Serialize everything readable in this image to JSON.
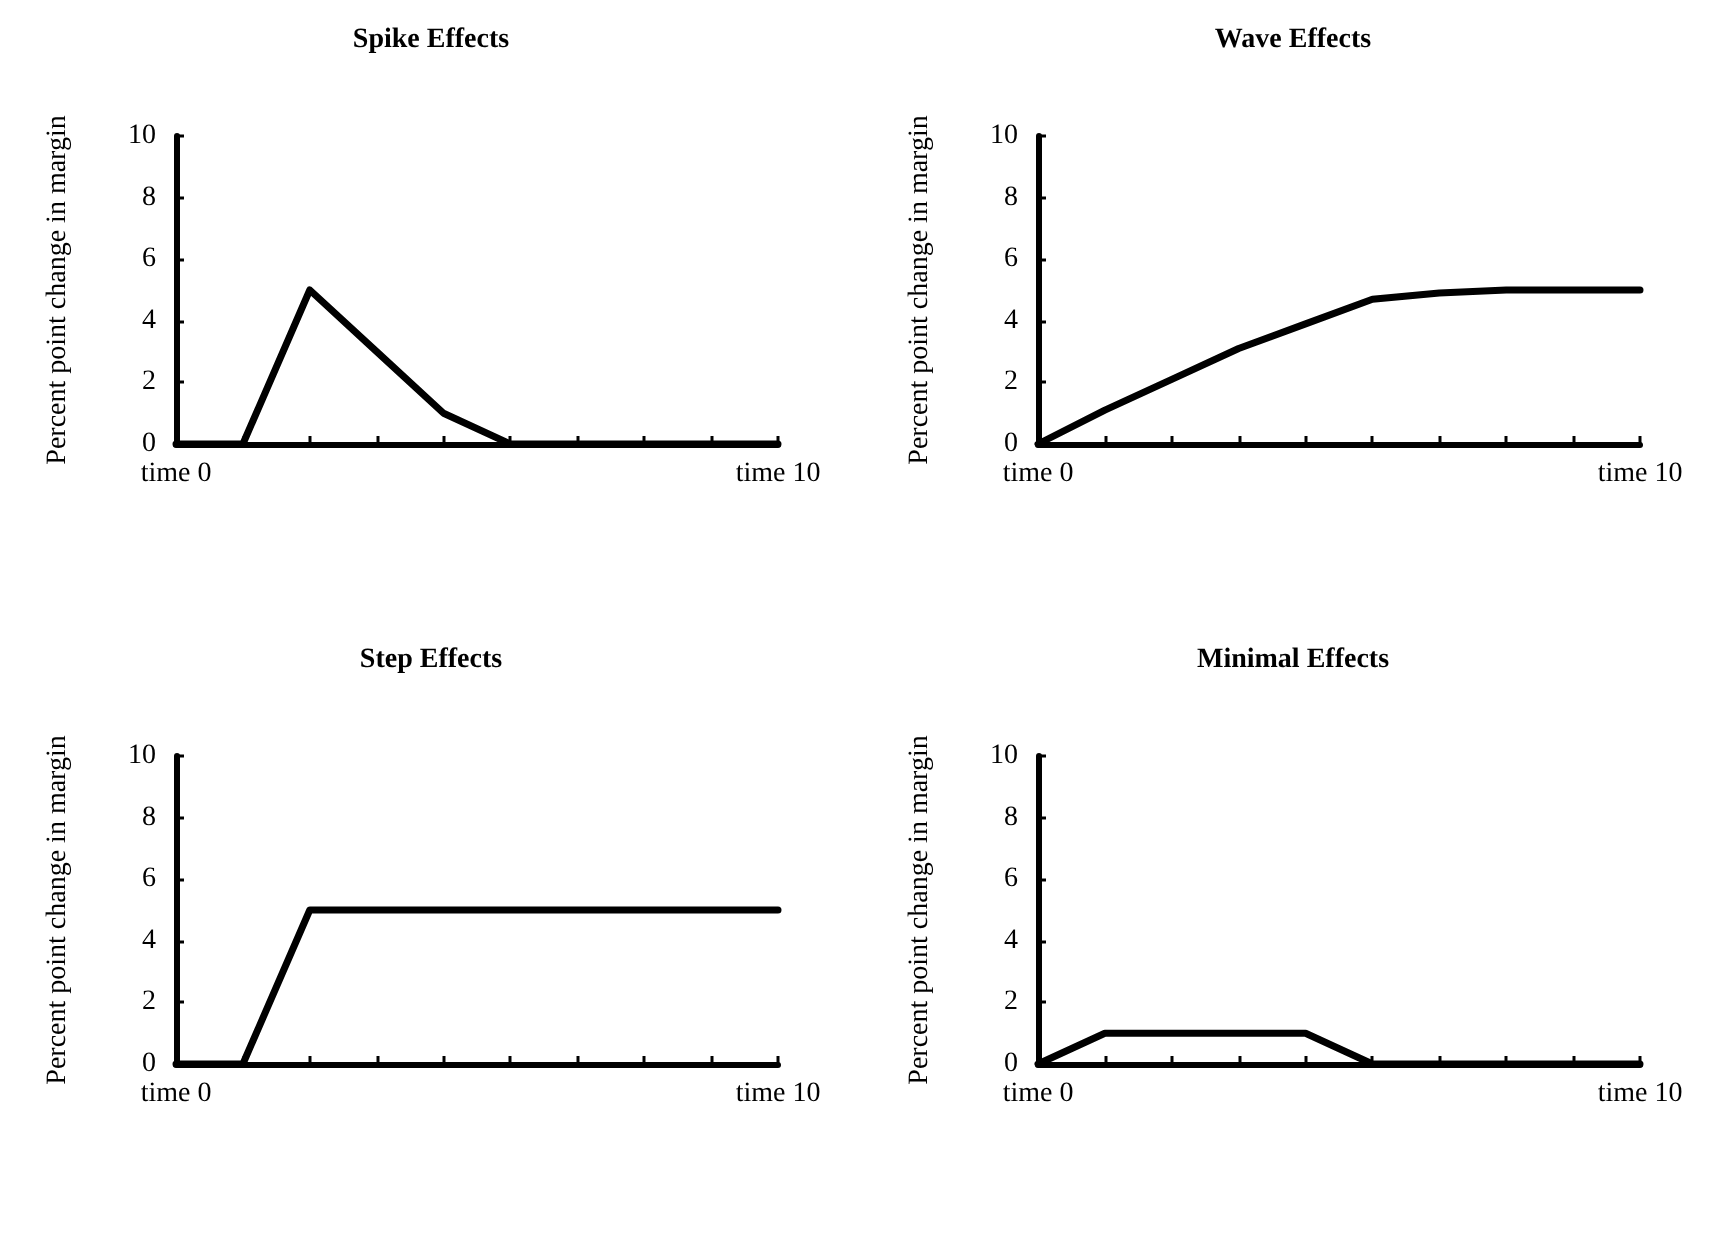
{
  "chart_data": [
    {
      "type": "line",
      "title": "Spike Effects",
      "ylabel": "Percent point change in margin",
      "categories": [
        "time 0",
        null,
        null,
        null,
        null,
        null,
        null,
        null,
        null,
        "time 10"
      ],
      "values": [
        0,
        0,
        5,
        3,
        1,
        0,
        0,
        0,
        0,
        0
      ],
      "color": "#000000",
      "ylim": [
        0,
        10
      ],
      "yticks": [
        0,
        2,
        4,
        6,
        8,
        10
      ],
      "grid": false,
      "marker": "none",
      "line_style": "solid"
    },
    {
      "type": "line",
      "title": "Wave Effects",
      "ylabel": "Percent point change in margin",
      "categories": [
        "time 0",
        null,
        null,
        null,
        null,
        null,
        null,
        null,
        null,
        "time 10"
      ],
      "values": [
        0,
        1.1,
        2.1,
        3.1,
        3.9,
        4.7,
        4.9,
        5,
        5,
        5
      ],
      "color": "#000000",
      "ylim": [
        0,
        10
      ],
      "yticks": [
        0,
        2,
        4,
        6,
        8,
        10
      ],
      "grid": false,
      "marker": "none",
      "line_style": "solid"
    },
    {
      "type": "line",
      "title": "Step Effects",
      "ylabel": "Percent point change in margin",
      "categories": [
        "time 0",
        null,
        null,
        null,
        null,
        null,
        null,
        null,
        null,
        "time 10"
      ],
      "values": [
        0,
        0,
        5,
        5,
        5,
        5,
        5,
        5,
        5,
        5
      ],
      "color": "#000000",
      "ylim": [
        0,
        10
      ],
      "yticks": [
        0,
        2,
        4,
        6,
        8,
        10
      ],
      "grid": false,
      "marker": "none",
      "line_style": "solid"
    },
    {
      "type": "line",
      "title": "Minimal Effects",
      "ylabel": "Percent point change in margin",
      "categories": [
        "time 0",
        null,
        null,
        null,
        null,
        null,
        null,
        null,
        null,
        "time 10"
      ],
      "values": [
        0,
        1,
        1,
        1,
        1,
        0,
        0,
        0,
        0,
        0
      ],
      "color": "#000000",
      "ylim": [
        0,
        10
      ],
      "yticks": [
        0,
        2,
        4,
        6,
        8,
        10
      ],
      "grid": false,
      "marker": "none",
      "line_style": "solid"
    }
  ]
}
